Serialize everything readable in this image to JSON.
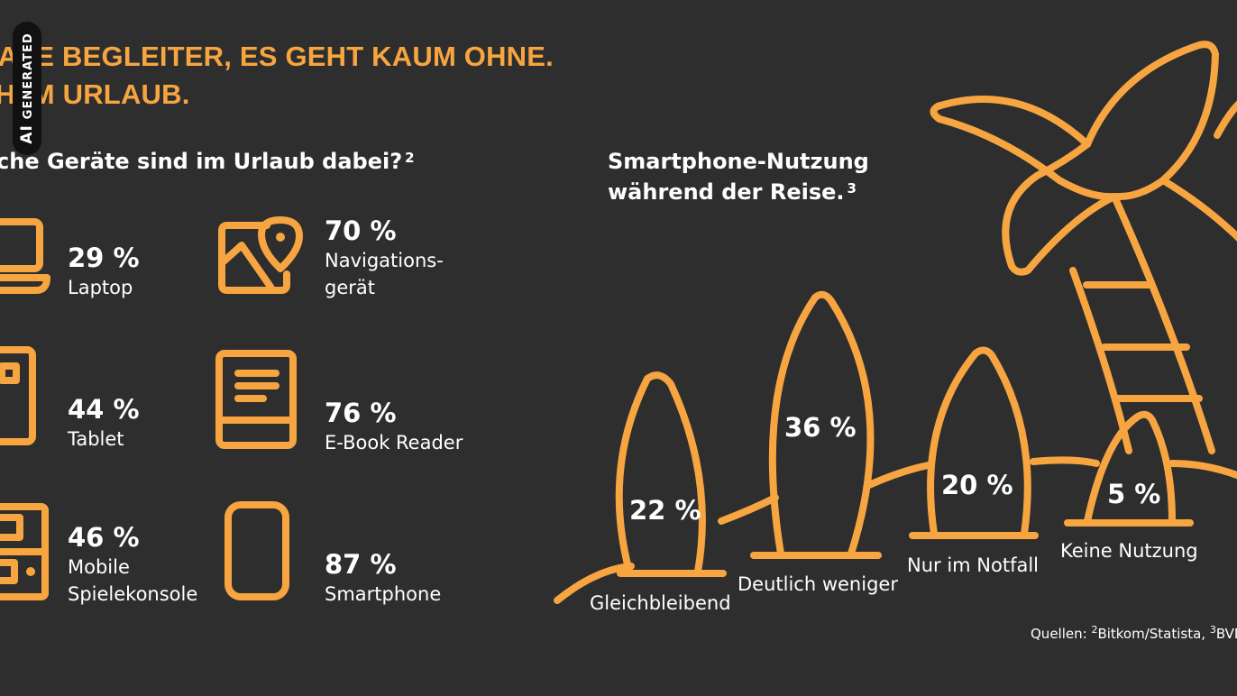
{
  "headline": {
    "line1": "ITALE BEGLEITER, ES GEHT KAUM OHNE.",
    "line2": "CH IM URLAUB."
  },
  "ai_badge": {
    "label_strong": "AI",
    "label": "GENERATED"
  },
  "devices_section": {
    "title": "che Geräte sind im Urlaub dabei?",
    "title_sup": "2",
    "items": [
      {
        "pct": "29 %",
        "label": "Laptop",
        "icon": "laptop-icon"
      },
      {
        "pct": "70 %",
        "label": "Navigations-\ngerät",
        "icon": "map-pin-icon"
      },
      {
        "pct": "44 %",
        "label": "Tablet",
        "icon": "tablet-icon"
      },
      {
        "pct": "76 %",
        "label": "E-Book Reader",
        "icon": "ebook-icon"
      },
      {
        "pct": "46 %",
        "label": "Mobile\nSpielekonsole",
        "icon": "gameconsole-icon"
      },
      {
        "pct": "87 %",
        "label": "Smartphone",
        "icon": "smartphone-icon"
      }
    ]
  },
  "usage_section": {
    "title_line1": "Smartphone-Nutzung",
    "title_line2": "während der Reise.",
    "title_sup": "3",
    "boards": [
      {
        "pct": "22 %",
        "label": "Gleichbleibend",
        "value": 22
      },
      {
        "pct": "36 %",
        "label": "Deutlich weniger",
        "value": 36
      },
      {
        "pct": "20 %",
        "label": "Nur im Notfall",
        "value": 20
      },
      {
        "pct": "5 %",
        "label": "Keine Nutzung",
        "value": 5
      }
    ]
  },
  "source": {
    "prefix": "Quellen: ",
    "sup1": "2",
    "text1": "Bitkom/Statista, ",
    "sup2": "3",
    "text2": "BVD"
  },
  "colors": {
    "background": "#2e2e2e",
    "accent": "#f7a541",
    "text": "#ffffff"
  }
}
